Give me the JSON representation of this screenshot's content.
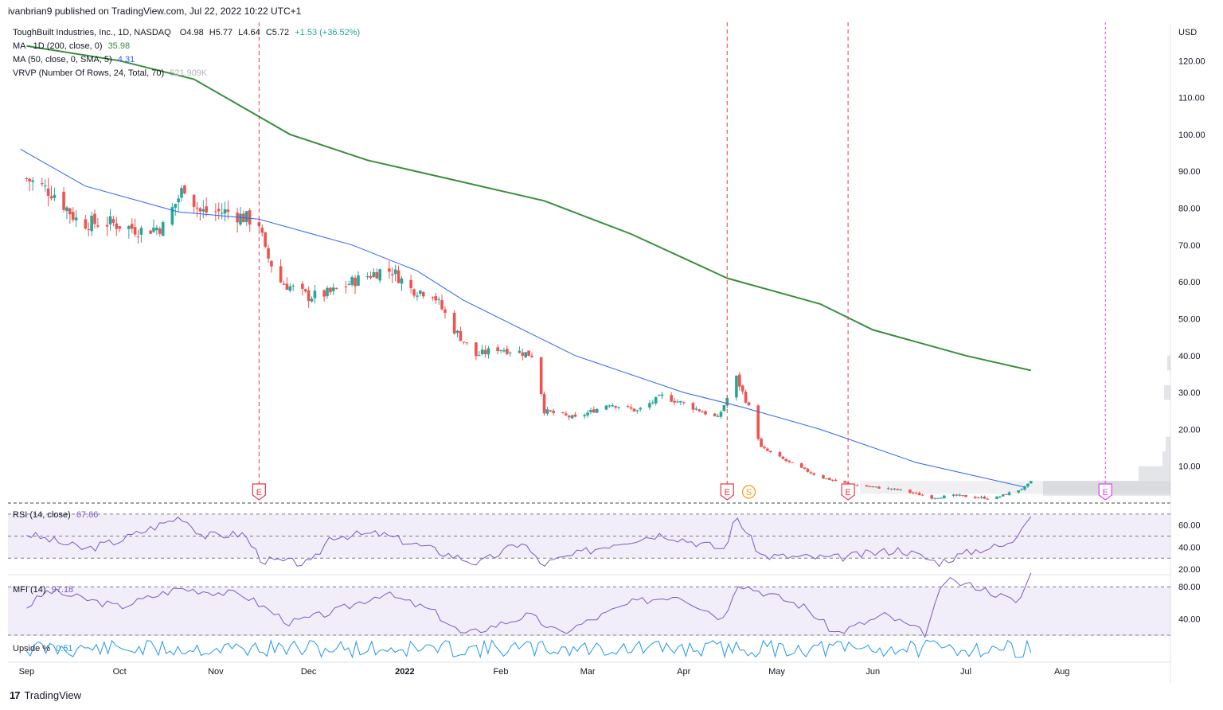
{
  "header": {
    "published": "ivanbrian9 published on TradingView.com, Jul 22, 2022 10:22 UTC+1"
  },
  "legend": {
    "symbol": "ToughBuilt Industries, Inc., 1D, NASDAQ",
    "ohlc": {
      "open": "O4.98",
      "high": "H5.77",
      "low": "L4.64",
      "close": "C5.72",
      "change": "+1.53 (+36.52%)"
    },
    "ma200": {
      "label": "MA · 1D (200, close, 0)",
      "value": "35.98",
      "color": "#388e3c"
    },
    "ma50": {
      "label": "MA (50, close, 0, SMA, 5)",
      "value": "4.31",
      "color": "#2962ff"
    },
    "vrvp": {
      "label": "VRVP (Number Of Rows, 24, Total, 70)",
      "value": "521.909K"
    },
    "rsi": {
      "label": "RSI (14, close)",
      "value": "67.66",
      "color": "#7e57c2"
    },
    "mfi": {
      "label": "MFI (14)",
      "value": "97.18",
      "color": "#7e57c2"
    },
    "upside": {
      "label": "Upside %",
      "value": "0.51",
      "color": "#2196f3"
    }
  },
  "footer": {
    "brand": "TradingView",
    "logo": "tv-logo-icon"
  },
  "colors": {
    "up": "#26a69a",
    "down": "#ef5350",
    "earnings": "#f23645",
    "split": "#ff9800",
    "future_earnings": "#e040fb"
  },
  "chart_data": [
    {
      "type": "candlestick",
      "currency": "USD",
      "ylim": [
        0,
        130
      ],
      "y_ticks": [
        "120.00",
        "110.00",
        "100.00",
        "90.00",
        "80.00",
        "70.00",
        "60.00",
        "50.00",
        "40.00",
        "30.00",
        "20.00",
        "10.00"
      ],
      "x_ticks": [
        "Sep",
        "Oct",
        "Nov",
        "Dec",
        "2022",
        "Feb",
        "Mar",
        "Apr",
        "May",
        "Jun",
        "Jul",
        "Aug"
      ],
      "close_path": [
        {
          "date": "2021-09-01",
          "close": 88
        },
        {
          "date": "2021-09-10",
          "close": 84
        },
        {
          "date": "2021-09-18",
          "close": 76
        },
        {
          "date": "2021-09-28",
          "close": 76
        },
        {
          "date": "2021-10-08",
          "close": 74
        },
        {
          "date": "2021-10-15",
          "close": 75
        },
        {
          "date": "2021-10-22",
          "close": 86
        },
        {
          "date": "2021-10-27",
          "close": 79
        },
        {
          "date": "2021-11-05",
          "close": 79
        },
        {
          "date": "2021-11-15",
          "close": 76
        },
        {
          "date": "2021-11-17",
          "close": 68
        },
        {
          "date": "2021-11-22",
          "close": 60
        },
        {
          "date": "2021-12-01",
          "close": 56
        },
        {
          "date": "2021-12-08",
          "close": 57
        },
        {
          "date": "2021-12-15",
          "close": 60
        },
        {
          "date": "2021-12-24",
          "close": 63
        },
        {
          "date": "2021-12-28",
          "close": 63
        },
        {
          "date": "2022-01-03",
          "close": 58
        },
        {
          "date": "2022-01-10",
          "close": 57
        },
        {
          "date": "2022-01-17",
          "close": 47
        },
        {
          "date": "2022-01-24",
          "close": 40
        },
        {
          "date": "2022-01-31",
          "close": 42
        },
        {
          "date": "2022-02-07",
          "close": 41
        },
        {
          "date": "2022-02-12",
          "close": 40
        },
        {
          "date": "2022-02-15",
          "close": 25
        },
        {
          "date": "2022-02-25",
          "close": 23
        },
        {
          "date": "2022-03-08",
          "close": 27
        },
        {
          "date": "2022-03-17",
          "close": 25
        },
        {
          "date": "2022-03-25",
          "close": 29
        },
        {
          "date": "2022-04-01",
          "close": 27
        },
        {
          "date": "2022-04-12",
          "close": 23
        },
        {
          "date": "2022-04-18",
          "close": 34
        },
        {
          "date": "2022-04-22",
          "close": 26
        },
        {
          "date": "2022-04-26",
          "close": 15
        },
        {
          "date": "2022-05-05",
          "close": 11
        },
        {
          "date": "2022-05-15",
          "close": 7
        },
        {
          "date": "2022-05-25",
          "close": 5
        },
        {
          "date": "2022-06-10",
          "close": 3.5
        },
        {
          "date": "2022-06-20",
          "close": 1.5
        },
        {
          "date": "2022-06-28",
          "close": 2.0
        },
        {
          "date": "2022-07-10",
          "close": 1.2
        },
        {
          "date": "2022-07-20",
          "close": 4.2
        },
        {
          "date": "2022-07-22",
          "close": 5.72
        }
      ],
      "series": [
        {
          "name": "MA · 1D (200, close, 0)",
          "points": [
            {
              "date": "2021-09-01",
              "value": 124
            },
            {
              "date": "2021-10-01",
              "value": 120
            },
            {
              "date": "2021-10-25",
              "value": 115
            },
            {
              "date": "2021-11-25",
              "value": 100
            },
            {
              "date": "2021-12-20",
              "value": 93
            },
            {
              "date": "2022-01-15",
              "value": 88
            },
            {
              "date": "2022-02-15",
              "value": 82
            },
            {
              "date": "2022-03-15",
              "value": 73
            },
            {
              "date": "2022-04-15",
              "value": 61
            },
            {
              "date": "2022-05-15",
              "value": 54
            },
            {
              "date": "2022-06-01",
              "value": 47
            },
            {
              "date": "2022-07-01",
              "value": 40
            },
            {
              "date": "2022-07-22",
              "value": 35.98
            }
          ]
        },
        {
          "name": "MA (50, close, 0, SMA, 5)",
          "points": [
            {
              "date": "2021-08-30",
              "value": 96
            },
            {
              "date": "2021-09-20",
              "value": 86
            },
            {
              "date": "2021-10-20",
              "value": 79
            },
            {
              "date": "2021-11-15",
              "value": 77
            },
            {
              "date": "2021-12-15",
              "value": 70
            },
            {
              "date": "2022-01-05",
              "value": 63
            },
            {
              "date": "2022-01-20",
              "value": 55
            },
            {
              "date": "2022-02-25",
              "value": 40
            },
            {
              "date": "2022-04-01",
              "value": 30
            },
            {
              "date": "2022-04-20",
              "value": 26
            },
            {
              "date": "2022-05-15",
              "value": 20
            },
            {
              "date": "2022-06-15",
              "value": 11
            },
            {
              "date": "2022-07-20",
              "value": 4.31
            }
          ]
        }
      ],
      "events": [
        {
          "type": "earnings",
          "label": "E",
          "date": "2021-11-15"
        },
        {
          "type": "earnings",
          "label": "E",
          "date": "2022-04-15"
        },
        {
          "type": "split",
          "label": "S",
          "date": "2022-04-22"
        },
        {
          "type": "earnings",
          "label": "E",
          "date": "2022-05-24"
        },
        {
          "type": "earnings",
          "label": "E",
          "date": "2022-08-15",
          "future": true
        }
      ]
    },
    {
      "type": "line",
      "name": "RSI (14, close)",
      "ylim": [
        15,
        80
      ],
      "y_ticks": [
        "60.00",
        "40.00",
        "20.00"
      ],
      "bands": [
        70,
        50,
        30
      ],
      "points": [
        {
          "date": "2021-09-01",
          "value": 52
        },
        {
          "date": "2021-09-20",
          "value": 38
        },
        {
          "date": "2021-10-01",
          "value": 46
        },
        {
          "date": "2021-10-21",
          "value": 68
        },
        {
          "date": "2021-10-28",
          "value": 50
        },
        {
          "date": "2021-11-10",
          "value": 52
        },
        {
          "date": "2021-11-16",
          "value": 28
        },
        {
          "date": "2021-12-02",
          "value": 25
        },
        {
          "date": "2021-12-08",
          "value": 50
        },
        {
          "date": "2021-12-24",
          "value": 52
        },
        {
          "date": "2022-01-05",
          "value": 42
        },
        {
          "date": "2022-01-25",
          "value": 25
        },
        {
          "date": "2022-02-08",
          "value": 45
        },
        {
          "date": "2022-02-14",
          "value": 24
        },
        {
          "date": "2022-03-10",
          "value": 44
        },
        {
          "date": "2022-03-25",
          "value": 52
        },
        {
          "date": "2022-04-14",
          "value": 38
        },
        {
          "date": "2022-04-18",
          "value": 68
        },
        {
          "date": "2022-04-26",
          "value": 32
        },
        {
          "date": "2022-05-20",
          "value": 30
        },
        {
          "date": "2022-06-10",
          "value": 38
        },
        {
          "date": "2022-06-22",
          "value": 26
        },
        {
          "date": "2022-07-05",
          "value": 38
        },
        {
          "date": "2022-07-15",
          "value": 42
        },
        {
          "date": "2022-07-22",
          "value": 67.66
        }
      ]
    },
    {
      "type": "line",
      "name": "MFI (14)",
      "ylim": [
        20,
        95
      ],
      "y_ticks": [
        "80.00",
        "40.00"
      ],
      "bands": [
        80,
        20
      ],
      "points": [
        {
          "date": "2021-09-01",
          "value": 55
        },
        {
          "date": "2021-09-08",
          "value": 75
        },
        {
          "date": "2021-10-01",
          "value": 55
        },
        {
          "date": "2021-10-20",
          "value": 78
        },
        {
          "date": "2021-11-10",
          "value": 70
        },
        {
          "date": "2021-11-25",
          "value": 35
        },
        {
          "date": "2021-12-10",
          "value": 50
        },
        {
          "date": "2021-12-25",
          "value": 72
        },
        {
          "date": "2022-01-10",
          "value": 50
        },
        {
          "date": "2022-01-20",
          "value": 20
        },
        {
          "date": "2022-02-10",
          "value": 45
        },
        {
          "date": "2022-02-20",
          "value": 22
        },
        {
          "date": "2022-03-15",
          "value": 60
        },
        {
          "date": "2022-03-30",
          "value": 70
        },
        {
          "date": "2022-04-14",
          "value": 40
        },
        {
          "date": "2022-04-18",
          "value": 85
        },
        {
          "date": "2022-05-10",
          "value": 55
        },
        {
          "date": "2022-05-20",
          "value": 22
        },
        {
          "date": "2022-06-05",
          "value": 45
        },
        {
          "date": "2022-06-18",
          "value": 22
        },
        {
          "date": "2022-06-24",
          "value": 88
        },
        {
          "date": "2022-07-05",
          "value": 80
        },
        {
          "date": "2022-07-18",
          "value": 60
        },
        {
          "date": "2022-07-22",
          "value": 97.18
        }
      ]
    },
    {
      "type": "line",
      "name": "Upside %",
      "oscillating": true,
      "last_value": "0.51"
    }
  ]
}
